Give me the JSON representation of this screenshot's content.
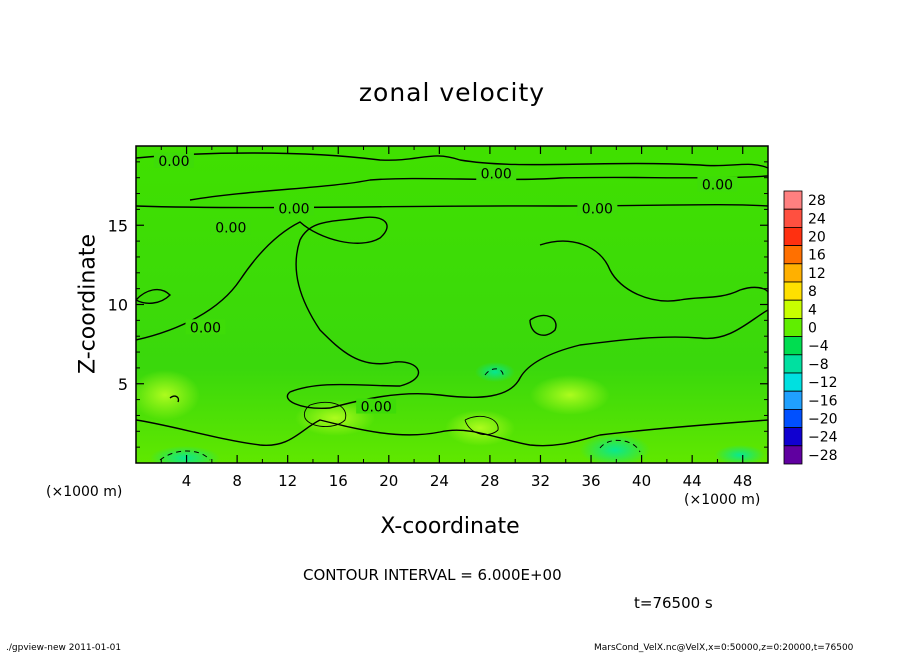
{
  "chart_data": {
    "type": "heatmap",
    "title": "zonal velocity",
    "xlabel": "X-coordinate",
    "ylabel": "Z-coordinate",
    "x_unit_left": "(×1000 m)",
    "x_unit_right": "(×1000 m)",
    "xlim": [
      0,
      50
    ],
    "ylim": [
      0,
      20
    ],
    "x_ticks": [
      4,
      8,
      12,
      16,
      20,
      24,
      28,
      32,
      36,
      40,
      44,
      48
    ],
    "y_ticks": [
      5,
      10,
      15
    ],
    "colorbar_levels": [
      28,
      24,
      20,
      16,
      12,
      8,
      4,
      0,
      -4,
      -8,
      -12,
      -16,
      -20,
      -24,
      -28
    ],
    "colorbar_labels": [
      "28",
      "24",
      "20",
      "16",
      "12",
      "8",
      "4",
      "0",
      "−4",
      "−8",
      "−12",
      "−16",
      "−20",
      "−24",
      "−28"
    ],
    "colorbar_colors": [
      "#ff8080",
      "#ff5040",
      "#ff3010",
      "#ff7000",
      "#ffb000",
      "#ffe000",
      "#c8ff00",
      "#60ee00",
      "#00dd50",
      "#00e0a0",
      "#00e0e0",
      "#20a0ff",
      "#0050ff",
      "#1000d0",
      "#6000a0"
    ],
    "contour_labels": [
      {
        "text": "0.00",
        "x": 3.0,
        "y": 19.0
      },
      {
        "text": "0.00",
        "x": 28.5,
        "y": 18.2
      },
      {
        "text": "0.00",
        "x": 46.0,
        "y": 17.5
      },
      {
        "text": "0.00",
        "x": 12.5,
        "y": 16.0
      },
      {
        "text": "0.00",
        "x": 36.5,
        "y": 16.0
      },
      {
        "text": "0.00",
        "x": 7.5,
        "y": 14.8
      },
      {
        "text": "0.00",
        "x": 5.5,
        "y": 8.5
      },
      {
        "text": "0.00",
        "x": 19.0,
        "y": 3.5
      }
    ],
    "contour_interval_text": "CONTOUR INTERVAL = 6.000E+00",
    "time_text": "t=76500 s"
  },
  "footer": {
    "left": "./gpview-new  2011-01-01",
    "right": "MarsCond_VelX.nc@VelX,x=0:50000,z=0:20000,t=76500"
  }
}
